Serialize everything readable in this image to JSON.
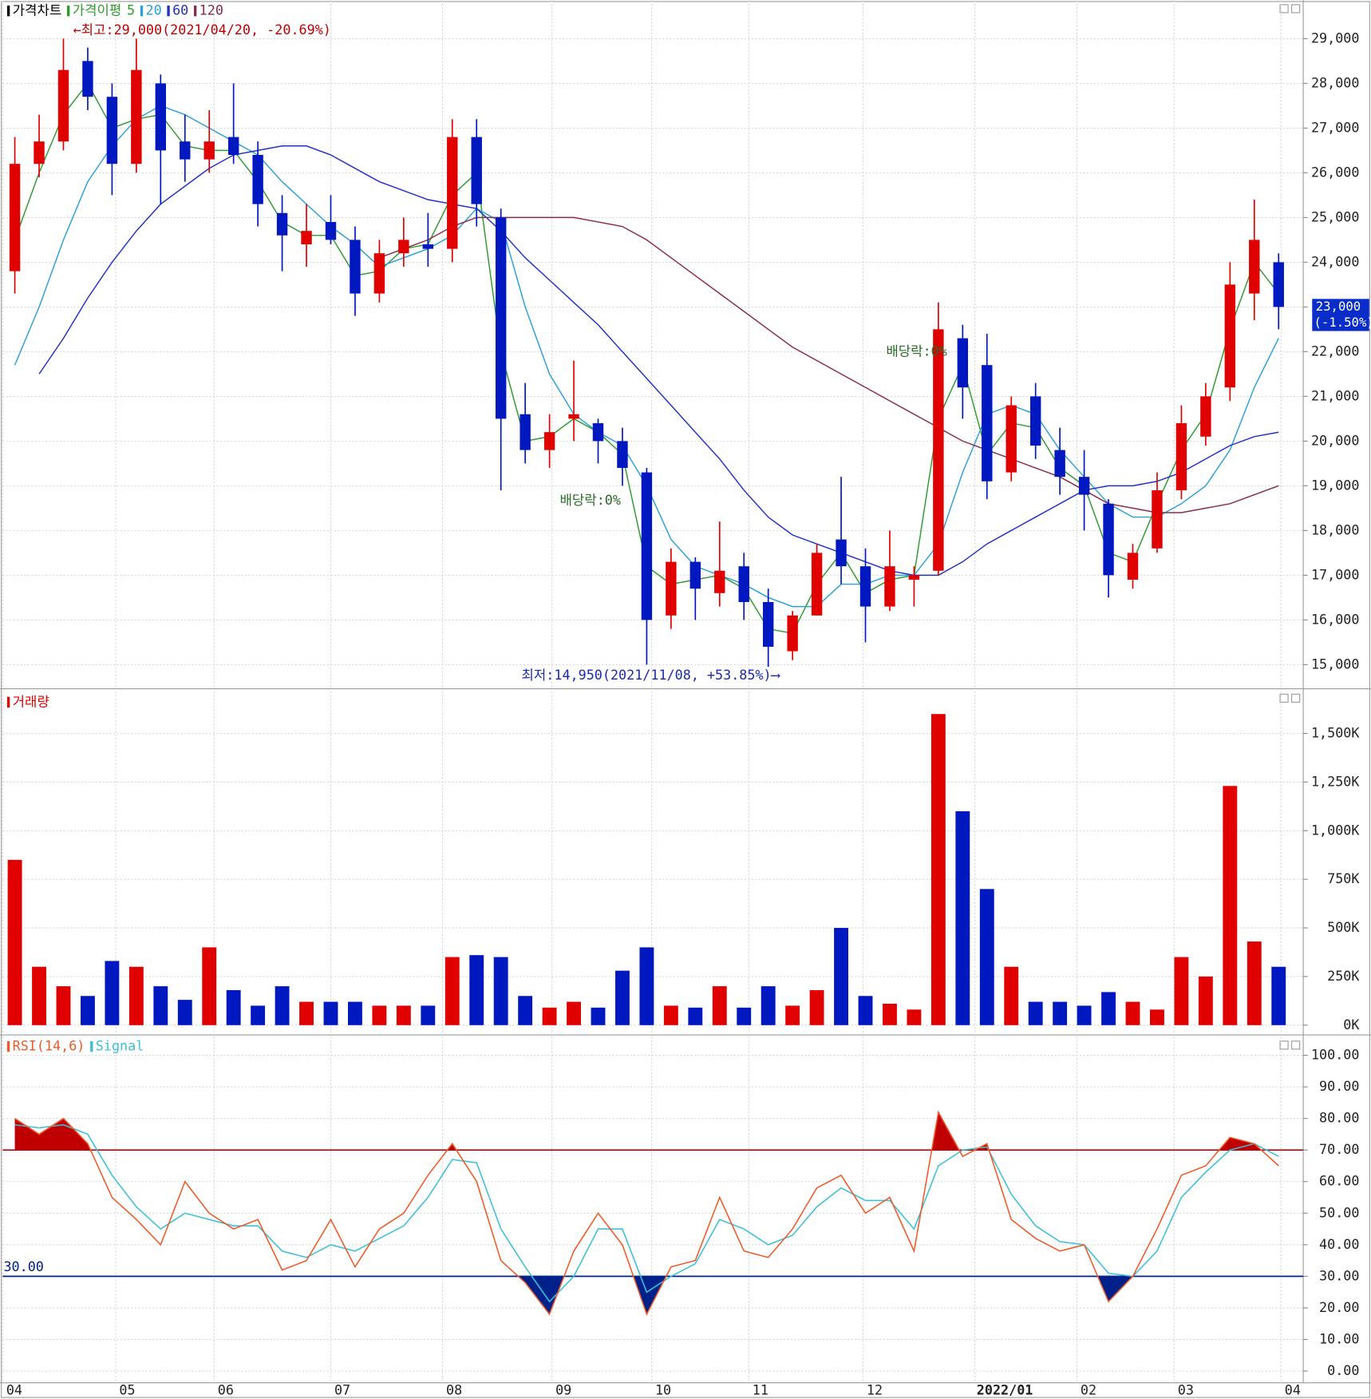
{
  "chart_data": [
    {
      "type": "candlestick",
      "title": "가격차트",
      "ma_title": "가격이평",
      "up_color": "#e00000",
      "down_color": "#0018c0",
      "categories": [
        null,
        null,
        null,
        null,
        null,
        null,
        null,
        null,
        null,
        null,
        null,
        null,
        null,
        null,
        null,
        null,
        null,
        null,
        null,
        null,
        null,
        null,
        null,
        null,
        null,
        null,
        null,
        null,
        null,
        null,
        null,
        null,
        null,
        null,
        null,
        null,
        null,
        null,
        null,
        null,
        null,
        null,
        null,
        null,
        null,
        null,
        null,
        null,
        null,
        null,
        null,
        null,
        null
      ],
      "open": [
        23800,
        26200,
        26700,
        28500,
        27700,
        26200,
        28000,
        26700,
        26300,
        26800,
        26400,
        25100,
        24400,
        24900,
        24500,
        23300,
        24200,
        24400,
        24300,
        26800,
        25000,
        20600,
        19800,
        20500,
        20400,
        20000,
        19300,
        16100,
        17300,
        16600,
        17200,
        16400,
        15300,
        16100,
        17800,
        17200,
        16300,
        16900,
        17100,
        22300,
        21700,
        19300,
        21000,
        19800,
        19200,
        18600,
        16900,
        17600,
        18900,
        20100,
        21200,
        23300,
        24000
      ],
      "high": [
        26800,
        27300,
        29000,
        28800,
        28000,
        29000,
        28200,
        27300,
        27400,
        28000,
        26700,
        25500,
        25300,
        25500,
        24800,
        24500,
        25000,
        25100,
        27200,
        27200,
        25200,
        21300,
        20600,
        21800,
        20500,
        20300,
        19400,
        17600,
        17400,
        18200,
        17500,
        16700,
        16200,
        17700,
        19200,
        17600,
        18000,
        17200,
        23100,
        22600,
        22400,
        21000,
        21300,
        20300,
        19800,
        18700,
        17700,
        19300,
        20800,
        21300,
        24000,
        25400,
        24200
      ],
      "low": [
        23300,
        25900,
        26500,
        27400,
        25500,
        26000,
        25300,
        25800,
        26000,
        26200,
        24800,
        23800,
        23900,
        24400,
        22800,
        23100,
        23900,
        23900,
        24000,
        24800,
        18900,
        19500,
        19400,
        20000,
        19500,
        19000,
        15000,
        15800,
        16000,
        16300,
        16000,
        14950,
        15100,
        16100,
        16800,
        15500,
        16200,
        16300,
        17000,
        20500,
        18700,
        19100,
        19600,
        18800,
        18000,
        16500,
        16700,
        17500,
        18700,
        19900,
        20900,
        22700,
        22500
      ],
      "close": [
        26200,
        26700,
        28300,
        27700,
        26200,
        28300,
        26500,
        26300,
        26700,
        26400,
        25300,
        24600,
        24700,
        24500,
        23300,
        24200,
        24500,
        24300,
        26800,
        25300,
        20500,
        19800,
        20200,
        20600,
        20000,
        19400,
        16000,
        17300,
        16700,
        17100,
        16400,
        15400,
        16100,
        17500,
        17200,
        16300,
        17200,
        17000,
        22500,
        21200,
        19100,
        20800,
        19900,
        19200,
        18800,
        17000,
        17500,
        18900,
        20400,
        21000,
        23500,
        24500,
        23000
      ],
      "series": [
        {
          "name": "5",
          "color": "#2e9a2e",
          "values": [
            24500,
            26000,
            27300,
            28000,
            27000,
            27200,
            27300,
            26600,
            26500,
            26500,
            25800,
            24900,
            24600,
            24600,
            23700,
            23800,
            24300,
            24400,
            25500,
            26000,
            22000,
            20000,
            20100,
            20500,
            20200,
            19700,
            17200,
            16800,
            16900,
            17000,
            16700,
            15800,
            15700,
            16800,
            17500,
            16600,
            16900,
            17000,
            20500,
            21700,
            19700,
            20400,
            20300,
            19400,
            19000,
            17500,
            17300,
            18600,
            19800,
            20600,
            22500,
            24000,
            23300
          ]
        },
        {
          "name": "20",
          "color": "#2aa0d8",
          "values": [
            21700,
            23000,
            24500,
            25800,
            26600,
            27200,
            27500,
            27300,
            27000,
            26700,
            26400,
            25800,
            25300,
            24800,
            24400,
            23900,
            24100,
            24300,
            24600,
            25200,
            24900,
            23000,
            21500,
            20600,
            20200,
            19900,
            19000,
            17800,
            17200,
            17000,
            16800,
            16500,
            16300,
            16300,
            16800,
            16800,
            17000,
            17000,
            17700,
            19300,
            20600,
            20800,
            20600,
            19800,
            19200,
            18600,
            18300,
            18300,
            18600,
            19000,
            19800,
            21200,
            22300
          ]
        },
        {
          "name": "60",
          "color": "#2030c8",
          "values": [
            null,
            21500,
            22300,
            23200,
            24000,
            24700,
            25300,
            25700,
            26100,
            26400,
            26500,
            26600,
            26600,
            26400,
            26100,
            25800,
            25600,
            25400,
            25300,
            25200,
            24700,
            24100,
            23600,
            23100,
            22600,
            22000,
            21400,
            20800,
            20200,
            19600,
            18900,
            18300,
            17900,
            17700,
            17500,
            17300,
            17100,
            17000,
            17000,
            17300,
            17700,
            18000,
            18300,
            18600,
            18900,
            19000,
            19000,
            19100,
            19300,
            19600,
            19900,
            20100,
            20200
          ]
        },
        {
          "name": "120",
          "color": "#8a2a4a",
          "values": [
            null,
            null,
            null,
            null,
            null,
            null,
            null,
            null,
            null,
            null,
            null,
            null,
            null,
            null,
            null,
            24100,
            24300,
            24500,
            24800,
            25000,
            25000,
            25000,
            25000,
            25000,
            24900,
            24800,
            24500,
            24100,
            23700,
            23300,
            22900,
            22500,
            22100,
            21800,
            21500,
            21200,
            20900,
            20600,
            20300,
            20000,
            19800,
            19600,
            19400,
            19200,
            18900,
            18600,
            18500,
            18400,
            18400,
            18500,
            18600,
            18800,
            19000
          ]
        }
      ],
      "ylim": [
        14500,
        29860
      ],
      "yticks": [
        {
          "value": 15000,
          "label": "15,000"
        },
        {
          "value": 16000,
          "label": "16,000"
        },
        {
          "value": 17000,
          "label": "17,000"
        },
        {
          "value": 18000,
          "label": "18,000"
        },
        {
          "value": 19000,
          "label": "19,000"
        },
        {
          "value": 20000,
          "label": "20,000"
        },
        {
          "value": 21000,
          "label": "21,000"
        },
        {
          "value": 22000,
          "label": "22,000"
        },
        {
          "value": 23000,
          "label": "23,000"
        },
        {
          "value": 24000,
          "label": "24,000"
        },
        {
          "value": 25000,
          "label": "25,000"
        },
        {
          "value": 26000,
          "label": "26,000"
        },
        {
          "value": 27000,
          "label": "27,000"
        },
        {
          "value": 28000,
          "label": "28,000"
        },
        {
          "value": 29000,
          "label": "29,000"
        }
      ],
      "current_price": {
        "value": 23000,
        "label": "23,000"
      },
      "current_change": {
        "value": -1.5,
        "label": "(-1.50%)"
      },
      "annotations": [
        "←최고:29,000(2021/04/20, -20.69%)",
        "최저:14,950(2021/11/08, +53.85%)⟶",
        "배당락:0%",
        "배당락:0%"
      ],
      "grid": true
    },
    {
      "type": "bar",
      "title": "거래량",
      "title_color": "#e00000",
      "values": [
        850000,
        300000,
        200000,
        150000,
        330000,
        300000,
        200000,
        130000,
        400000,
        180000,
        100000,
        200000,
        120000,
        120000,
        120000,
        100000,
        100000,
        100000,
        350000,
        360000,
        350000,
        150000,
        90000,
        120000,
        90000,
        280000,
        400000,
        100000,
        90000,
        200000,
        90000,
        200000,
        100000,
        180000,
        500000,
        150000,
        110000,
        80000,
        1600000,
        1100000,
        700000,
        300000,
        120000,
        120000,
        100000,
        170000,
        120000,
        80000,
        350000,
        250000,
        1230000,
        430000,
        300000
      ],
      "ylim": [
        -41000,
        1716000
      ],
      "yticks": [
        {
          "value": 0,
          "label": "0K"
        },
        {
          "value": 250000,
          "label": "250K"
        },
        {
          "value": 500000,
          "label": "500K"
        },
        {
          "value": 750000,
          "label": "750K"
        },
        {
          "value": 1000000,
          "label": "1,000K"
        },
        {
          "value": 1250000,
          "label": "1,250K"
        },
        {
          "value": 1500000,
          "label": "1,500K"
        }
      ],
      "grid": true
    },
    {
      "type": "line",
      "series": [
        {
          "name": "RSI(14,6)",
          "color": "#f05a28",
          "values": [
            80,
            75,
            80,
            72,
            55,
            48,
            40,
            60,
            50,
            45,
            48,
            32,
            35,
            48,
            33,
            45,
            50,
            62,
            72,
            60,
            35,
            28,
            18,
            38,
            50,
            40,
            18,
            33,
            35,
            55,
            38,
            36,
            45,
            58,
            62,
            50,
            55,
            38,
            82,
            68,
            72,
            48,
            42,
            38,
            40,
            22,
            30,
            45,
            62,
            65,
            74,
            72,
            65
          ]
        },
        {
          "name": "Signal",
          "color": "#3cc0d8",
          "values": [
            78,
            77,
            78,
            75,
            62,
            52,
            45,
            50,
            48,
            46,
            46,
            38,
            36,
            40,
            38,
            42,
            46,
            55,
            67,
            66,
            45,
            33,
            22,
            30,
            45,
            45,
            25,
            30,
            34,
            48,
            45,
            40,
            43,
            52,
            58,
            54,
            54,
            45,
            65,
            70,
            71,
            56,
            46,
            41,
            40,
            31,
            30,
            38,
            55,
            63,
            70,
            72,
            68
          ]
        }
      ],
      "upper_line": 70,
      "upper_color": "#c00000",
      "lower_line": {
        "value": 30,
        "label": "30.00"
      },
      "lower_color": "#00208a",
      "ylim": [
        -3.7,
        105.9
      ],
      "yticks": [
        {
          "value": 0,
          "label": "0.00"
        },
        {
          "value": 10,
          "label": "10.00"
        },
        {
          "value": 20,
          "label": "20.00"
        },
        {
          "value": 30,
          "label": "30.00"
        },
        {
          "value": 40,
          "label": "40.00"
        },
        {
          "value": 50,
          "label": "50.00"
        },
        {
          "value": 60,
          "label": "60.00"
        },
        {
          "value": 70,
          "label": "70.00"
        },
        {
          "value": 80,
          "label": "80.00"
        },
        {
          "value": 90,
          "label": "90.00"
        },
        {
          "value": 100,
          "label": "100.00"
        }
      ],
      "xticks": [
        {
          "value": -0.5,
          "label": "04"
        },
        {
          "value": 4.15,
          "label": "05"
        },
        {
          "value": 8.2,
          "label": "06"
        },
        {
          "value": 13.0,
          "label": "07"
        },
        {
          "value": 17.6,
          "label": "08"
        },
        {
          "value": 22.1,
          "label": "09"
        },
        {
          "value": 26.2,
          "label": "10"
        },
        {
          "value": 30.2,
          "label": "11"
        },
        {
          "value": 34.9,
          "label": "12"
        },
        {
          "value": 39.5,
          "label": "2022/01"
        },
        {
          "value": 43.7,
          "label": "02"
        },
        {
          "value": 47.7,
          "label": "03"
        },
        {
          "value": 52.1,
          "label": "04"
        }
      ],
      "grid": true
    }
  ]
}
